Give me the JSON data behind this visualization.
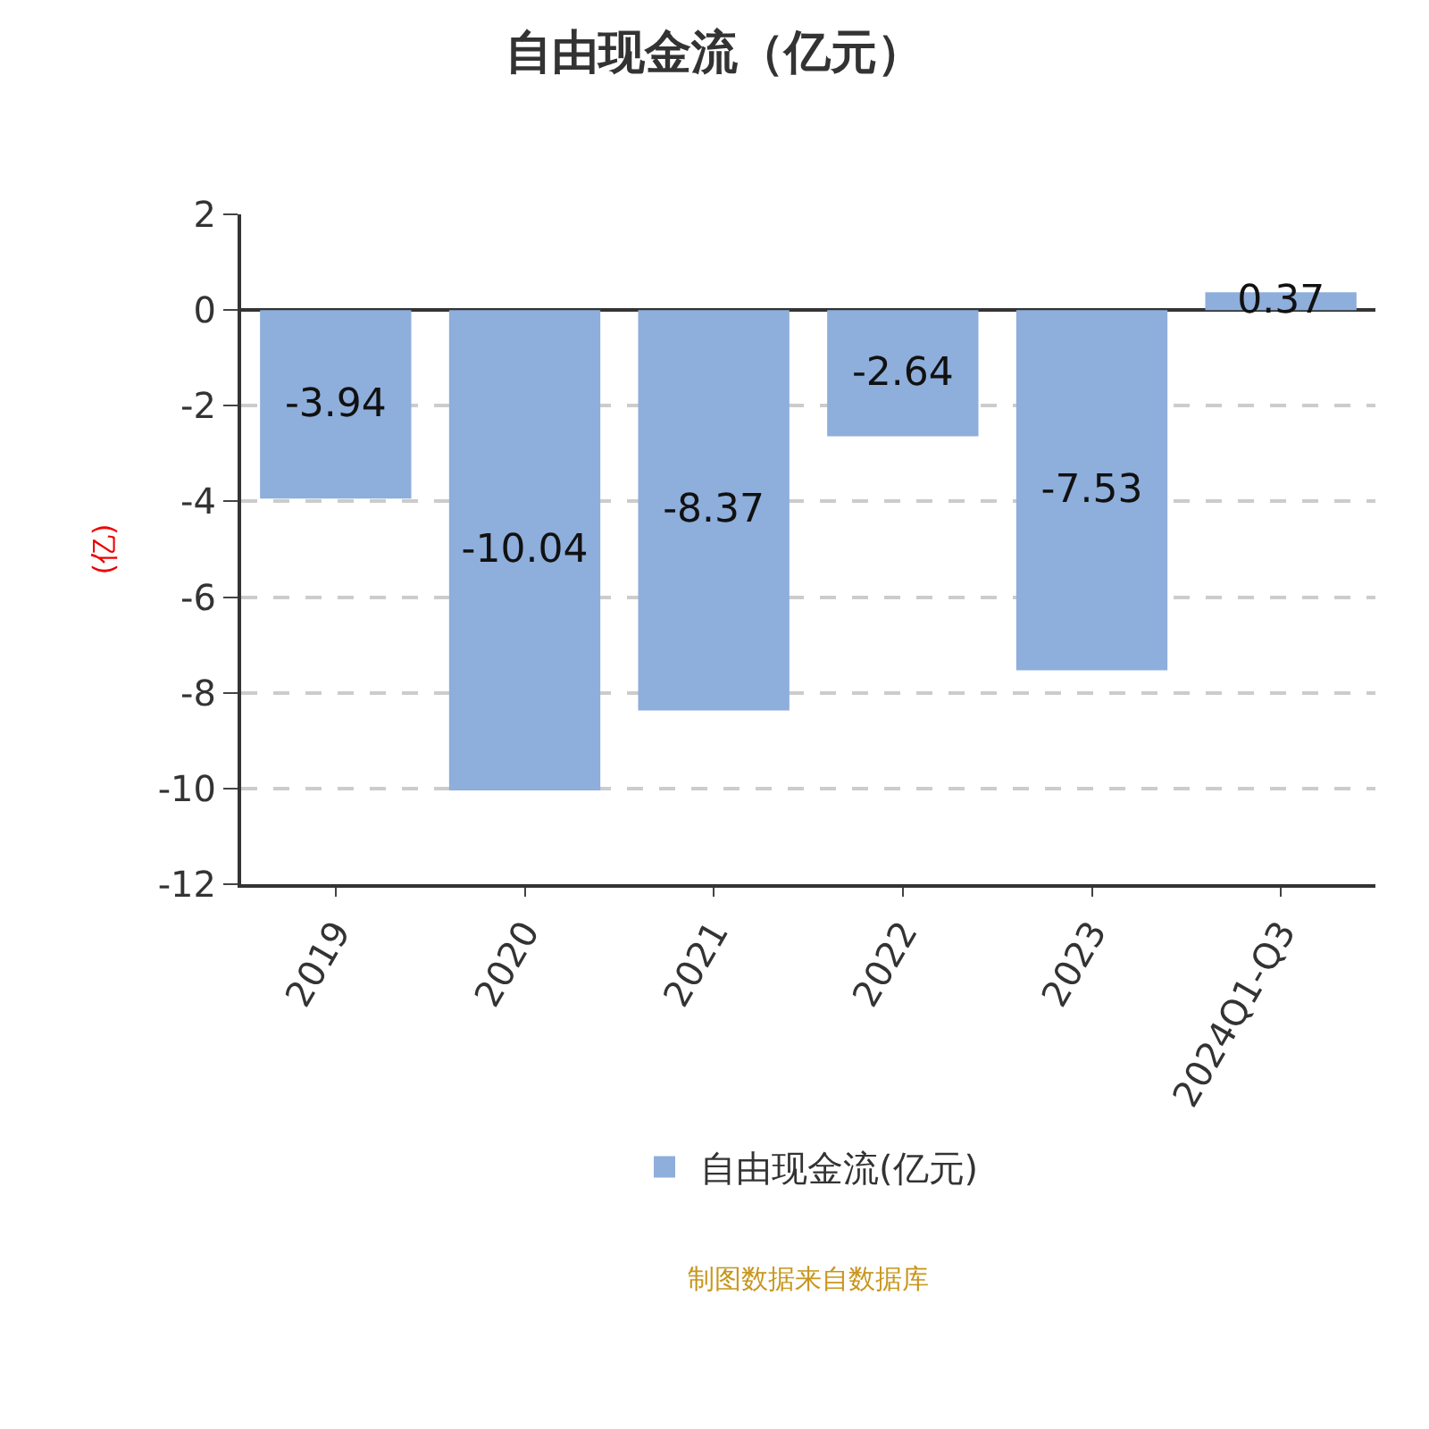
{
  "chart_data": {
    "type": "bar",
    "title": "自由现金流（亿元）",
    "ylabel": "(亿)",
    "categories": [
      "2019",
      "2020",
      "2021",
      "2022",
      "2023",
      "2024Q1-Q3"
    ],
    "series": [
      {
        "name": "自由现金流(亿元)",
        "color": "#8eaedb",
        "values": [
          -3.94,
          -10.04,
          -8.37,
          -2.64,
          -7.53,
          0.37
        ]
      }
    ],
    "ylim": [
      -12,
      2
    ],
    "yticks": [
      -12,
      -10,
      -8,
      -6,
      -4,
      -2,
      0,
      2
    ],
    "grid": "y",
    "legend": "bottom",
    "data_labels": true,
    "annotations": [
      "制图数据来自数据库"
    ]
  }
}
